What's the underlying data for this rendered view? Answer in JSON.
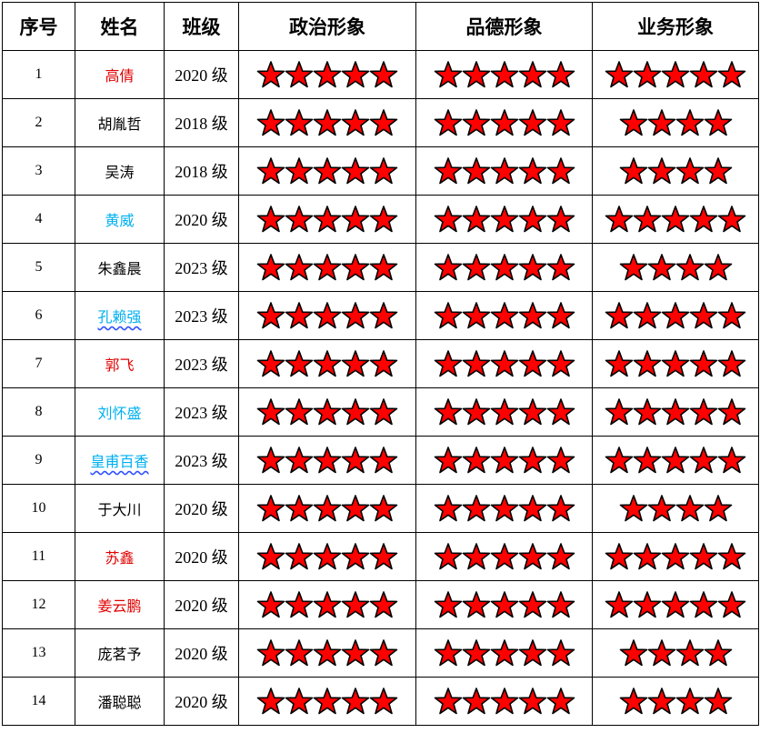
{
  "headers": [
    "序号",
    "姓名",
    "班级",
    "政治形象",
    "品德形象",
    "业务形象"
  ],
  "colors": {
    "red": "#e00000",
    "blue": "#00b0f0",
    "black": "#000000",
    "star": "#ff0000"
  },
  "rows": [
    {
      "no": "1",
      "name": "高倩",
      "color": "red",
      "class": "2020 级",
      "politics": 5,
      "morality": 5,
      "business": 5,
      "spell": false
    },
    {
      "no": "2",
      "name": "胡胤哲",
      "color": "black",
      "class": "2018 级",
      "politics": 5,
      "morality": 5,
      "business": 4,
      "spell": false
    },
    {
      "no": "3",
      "name": "吴涛",
      "color": "black",
      "class": "2018 级",
      "politics": 5,
      "morality": 5,
      "business": 4,
      "spell": false
    },
    {
      "no": "4",
      "name": "黄威",
      "color": "blue",
      "class": "2020 级",
      "politics": 5,
      "morality": 5,
      "business": 5,
      "spell": false
    },
    {
      "no": "5",
      "name": "朱鑫晨",
      "color": "black",
      "class": "2023 级",
      "politics": 5,
      "morality": 5,
      "business": 4,
      "spell": false
    },
    {
      "no": "6",
      "name": "孔赖强",
      "color": "blue",
      "class": "2023 级",
      "politics": 5,
      "morality": 5,
      "business": 5,
      "spell": true
    },
    {
      "no": "7",
      "name": "郭飞",
      "color": "red",
      "class": "2023 级",
      "politics": 5,
      "morality": 5,
      "business": 5,
      "spell": false
    },
    {
      "no": "8",
      "name": "刘怀盛",
      "color": "blue",
      "class": "2023 级",
      "politics": 5,
      "morality": 5,
      "business": 5,
      "spell": false
    },
    {
      "no": "9",
      "name": "皇甫百香",
      "color": "blue",
      "class": "2023 级",
      "politics": 5,
      "morality": 5,
      "business": 5,
      "spell": true
    },
    {
      "no": "10",
      "name": "于大川",
      "color": "black",
      "class": "2020 级",
      "politics": 5,
      "morality": 5,
      "business": 4,
      "spell": false
    },
    {
      "no": "11",
      "name": "苏鑫",
      "color": "red",
      "class": "2020 级",
      "politics": 5,
      "morality": 5,
      "business": 5,
      "spell": false
    },
    {
      "no": "12",
      "name": "姜云鹏",
      "color": "red",
      "class": "2020 级",
      "politics": 5,
      "morality": 5,
      "business": 5,
      "spell": false
    },
    {
      "no": "13",
      "name": "庞茗予",
      "color": "black",
      "class": "2020 级",
      "politics": 5,
      "morality": 5,
      "business": 4,
      "spell": false
    },
    {
      "no": "14",
      "name": "潘聪聪",
      "color": "black",
      "class": "2020 级",
      "politics": 5,
      "morality": 5,
      "business": 4,
      "spell": false
    }
  ]
}
